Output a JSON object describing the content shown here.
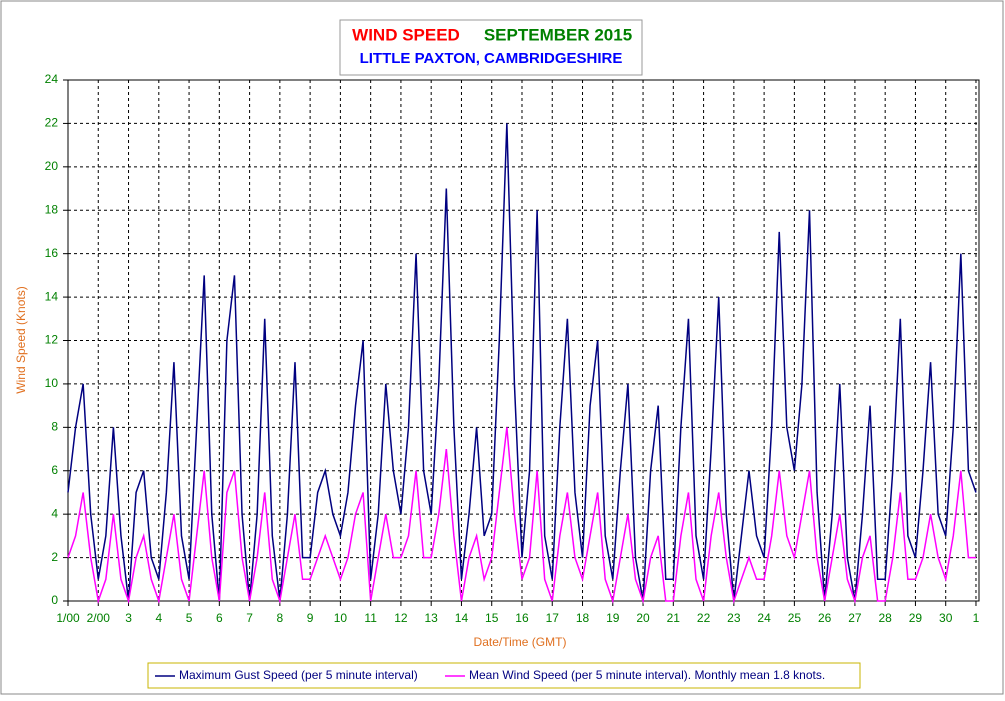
{
  "chart_data": {
    "type": "line",
    "title": "WIND SPEED",
    "title_month": "SEPTEMBER 2015",
    "subtitle": "LITTLE PAXTON, CAMBRIDGESHIRE",
    "ylabel": "Wind Speed (Knots)",
    "xlabel": "Date/Time (GMT)",
    "xlim": [
      0,
      30.1
    ],
    "ylim": [
      0,
      24
    ],
    "yticks": [
      0,
      2,
      4,
      6,
      8,
      10,
      12,
      14,
      16,
      18,
      20,
      22,
      24
    ],
    "xticks": [
      {
        "value": 0,
        "label": "1/00"
      },
      {
        "value": 1,
        "label": "2/00"
      },
      {
        "value": 2,
        "label": "3"
      },
      {
        "value": 3,
        "label": "4"
      },
      {
        "value": 4,
        "label": "5"
      },
      {
        "value": 5,
        "label": "6"
      },
      {
        "value": 6,
        "label": "7"
      },
      {
        "value": 7,
        "label": "8"
      },
      {
        "value": 8,
        "label": "9"
      },
      {
        "value": 9,
        "label": "10"
      },
      {
        "value": 10,
        "label": "11"
      },
      {
        "value": 11,
        "label": "12"
      },
      {
        "value": 12,
        "label": "13"
      },
      {
        "value": 13,
        "label": "14"
      },
      {
        "value": 14,
        "label": "15"
      },
      {
        "value": 15,
        "label": "16"
      },
      {
        "value": 16,
        "label": "17"
      },
      {
        "value": 17,
        "label": "18"
      },
      {
        "value": 18,
        "label": "19"
      },
      {
        "value": 19,
        "label": "20"
      },
      {
        "value": 20,
        "label": "21"
      },
      {
        "value": 21,
        "label": "22"
      },
      {
        "value": 22,
        "label": "23"
      },
      {
        "value": 23,
        "label": "24"
      },
      {
        "value": 24,
        "label": "25"
      },
      {
        "value": 25,
        "label": "26"
      },
      {
        "value": 26,
        "label": "27"
      },
      {
        "value": 27,
        "label": "28"
      },
      {
        "value": 28,
        "label": "29"
      },
      {
        "value": 29,
        "label": "30"
      },
      {
        "value": 30,
        "label": "1"
      }
    ],
    "grid": true,
    "x": [
      0,
      0.25,
      0.5,
      0.75,
      1,
      1.25,
      1.5,
      1.75,
      2,
      2.25,
      2.5,
      2.75,
      3,
      3.25,
      3.5,
      3.75,
      4,
      4.25,
      4.5,
      4.75,
      5,
      5.25,
      5.5,
      5.75,
      6,
      6.25,
      6.5,
      6.75,
      7,
      7.25,
      7.5,
      7.75,
      8,
      8.25,
      8.5,
      8.75,
      9,
      9.25,
      9.5,
      9.75,
      10,
      10.25,
      10.5,
      10.75,
      11,
      11.25,
      11.5,
      11.75,
      12,
      12.25,
      12.5,
      12.75,
      13,
      13.25,
      13.5,
      13.75,
      14,
      14.25,
      14.5,
      14.75,
      15,
      15.25,
      15.5,
      15.75,
      16,
      16.25,
      16.5,
      16.75,
      17,
      17.25,
      17.5,
      17.75,
      18,
      18.25,
      18.5,
      18.75,
      19,
      19.25,
      19.5,
      19.75,
      20,
      20.25,
      20.5,
      20.75,
      21,
      21.25,
      21.5,
      21.75,
      22,
      22.25,
      22.5,
      22.75,
      23,
      23.25,
      23.5,
      23.75,
      24,
      24.25,
      24.5,
      24.75,
      25,
      25.25,
      25.5,
      25.75,
      26,
      26.25,
      26.5,
      26.75,
      27,
      27.25,
      27.5,
      27.75,
      28,
      28.25,
      28.5,
      28.75,
      29,
      29.25,
      29.5,
      29.75,
      30
    ],
    "series": [
      {
        "name": "Maximum Gust Speed (per 5 minute interval)",
        "color": "#000080",
        "values": [
          5,
          8,
          10,
          4,
          1,
          3,
          8,
          3,
          0,
          5,
          6,
          2,
          1,
          5,
          11,
          3,
          1,
          8,
          15,
          4,
          0,
          12,
          15,
          4,
          0,
          4,
          13,
          3,
          0,
          4,
          11,
          2,
          2,
          5,
          6,
          4,
          3,
          5,
          9,
          12,
          1,
          4,
          10,
          6,
          4,
          8,
          16,
          6,
          4,
          10,
          19,
          8,
          1,
          4,
          8,
          3,
          4,
          12,
          22,
          10,
          2,
          6,
          18,
          3,
          1,
          8,
          13,
          5,
          2,
          9,
          12,
          3,
          1,
          6,
          10,
          2,
          0,
          6,
          9,
          1,
          1,
          8,
          13,
          3,
          1,
          7,
          14,
          4,
          0,
          3,
          6,
          3,
          2,
          8,
          17,
          8,
          6,
          10,
          18,
          5,
          0,
          4,
          10,
          2,
          0,
          4,
          9,
          1,
          1,
          6,
          13,
          3,
          2,
          6,
          11,
          4,
          3,
          8,
          16,
          6,
          5
        ]
      },
      {
        "name": "Mean Wind Speed (per 5 minute interval). Monthly mean 1.8 knots.",
        "color": "#ff00ff",
        "values": [
          2,
          3,
          5,
          2,
          0,
          1,
          4,
          1,
          0,
          2,
          3,
          1,
          0,
          2,
          4,
          1,
          0,
          3,
          6,
          2,
          0,
          5,
          6,
          2,
          0,
          2,
          5,
          1,
          0,
          2,
          4,
          1,
          1,
          2,
          3,
          2,
          1,
          2,
          4,
          5,
          0,
          2,
          4,
          2,
          2,
          3,
          6,
          2,
          2,
          4,
          7,
          3,
          0,
          2,
          3,
          1,
          2,
          5,
          8,
          4,
          1,
          2,
          6,
          1,
          0,
          3,
          5,
          2,
          1,
          3,
          5,
          1,
          0,
          2,
          4,
          1,
          0,
          2,
          3,
          0,
          0,
          3,
          5,
          1,
          0,
          3,
          5,
          2,
          0,
          1,
          2,
          1,
          1,
          3,
          6,
          3,
          2,
          4,
          6,
          2,
          0,
          2,
          4,
          1,
          0,
          2,
          3,
          0,
          0,
          2,
          5,
          1,
          1,
          2,
          4,
          2,
          1,
          3,
          6,
          2,
          2
        ]
      }
    ]
  }
}
